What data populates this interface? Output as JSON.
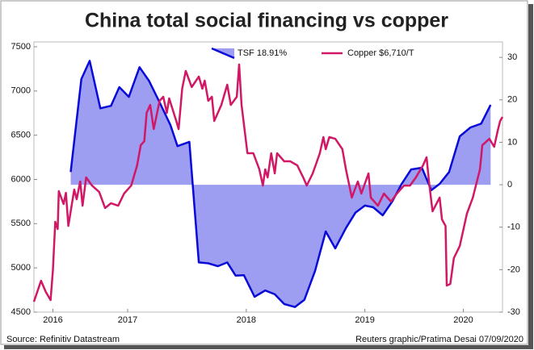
{
  "chart_data": {
    "type": "line",
    "title": "China total social financing vs copper",
    "source": "Source: Refinitiv Datastream",
    "credit": "Reuters graphic/Pratima Desai 07/09/2020",
    "legend": "top",
    "grid": false,
    "xlim": [
      2016.21,
      2020.16
    ],
    "xticks": [
      {
        "value": 2016.37,
        "label": "2016"
      },
      {
        "value": 2017,
        "label": "2017"
      },
      {
        "value": 2018,
        "label": "2018"
      },
      {
        "value": 2019,
        "label": "2019"
      },
      {
        "value": 2019.83,
        "label": "2020"
      }
    ],
    "ylim": [
      4500,
      7500
    ],
    "yticks": [
      4500,
      5000,
      5500,
      6000,
      6500,
      7000,
      7500
    ],
    "y2lim": [
      -30,
      32.5
    ],
    "y2ticks": [
      -30,
      -20,
      -10,
      0,
      10,
      20,
      30
    ],
    "series": [
      {
        "name": "TSF 18.91%",
        "color": "#0a0ad8",
        "fill": "#9d9df2",
        "axis": "y2",
        "area": true,
        "x": [
          2016.52,
          2016.61,
          2016.68,
          2016.77,
          2016.86,
          2016.93,
          2017.01,
          2017.1,
          2017.18,
          2017.27,
          2017.36,
          2017.42,
          2017.52,
          2017.6,
          2017.68,
          2017.76,
          2017.84,
          2017.91,
          2017.98,
          2018.07,
          2018.16,
          2018.24,
          2018.32,
          2018.41,
          2018.49,
          2018.58,
          2018.67,
          2018.75,
          2018.84,
          2018.92,
          2019.0,
          2019.07,
          2019.15,
          2019.23,
          2019.31,
          2019.39,
          2019.48,
          2019.56,
          2019.63,
          2019.71,
          2019.8,
          2019.89,
          2019.98,
          2020.06
        ],
        "values": [
          3.0,
          24.9,
          29.2,
          18.0,
          18.6,
          23.0,
          20.7,
          27.7,
          24.5,
          19.4,
          14.1,
          9.1,
          10.1,
          -18.3,
          -18.5,
          -19.2,
          -18.3,
          -21.4,
          -21.3,
          -26.4,
          -24.9,
          -25.8,
          -28.1,
          -28.8,
          -27.1,
          -20.3,
          -11.0,
          -15.0,
          -10.2,
          -6.6,
          -4.9,
          -5.3,
          -7.2,
          -4.0,
          0.2,
          3.6,
          4.0,
          -1.3,
          0.2,
          3.0,
          11.4,
          13.5,
          14.4,
          18.8
        ]
      },
      {
        "name": "Copper $6,710/T",
        "color": "#d01866",
        "axis": "y",
        "x": [
          2016.21,
          2016.27,
          2016.31,
          2016.35,
          2016.37,
          2016.39,
          2016.41,
          2016.42,
          2016.46,
          2016.48,
          2016.5,
          2016.55,
          2016.57,
          2016.6,
          2016.62,
          2016.65,
          2016.7,
          2016.76,
          2016.81,
          2016.86,
          2016.92,
          2016.97,
          2017.03,
          2017.08,
          2017.11,
          2017.14,
          2017.16,
          2017.19,
          2017.22,
          2017.27,
          2017.3,
          2017.33,
          2017.35,
          2017.41,
          2017.43,
          2017.46,
          2017.49,
          2017.52,
          2017.54,
          2017.6,
          2017.63,
          2017.65,
          2017.68,
          2017.71,
          2017.73,
          2017.79,
          2017.84,
          2017.87,
          2017.92,
          2017.94,
          2017.96,
          2018.01,
          2018.06,
          2018.11,
          2018.14,
          2018.16,
          2018.18,
          2018.21,
          2018.24,
          2018.26,
          2018.32,
          2018.37,
          2018.43,
          2018.48,
          2018.51,
          2018.56,
          2018.62,
          2018.65,
          2018.67,
          2018.7,
          2018.75,
          2018.81,
          2018.84,
          2018.89,
          2018.94,
          2018.97,
          2019.03,
          2019.05,
          2019.11,
          2019.16,
          2019.22,
          2019.27,
          2019.33,
          2019.38,
          2019.43,
          2019.49,
          2019.52,
          2019.54,
          2019.57,
          2019.63,
          2019.65,
          2019.68,
          2019.69,
          2019.72,
          2019.75,
          2019.8,
          2019.86,
          2019.91,
          2019.97,
          2019.99,
          2020.05,
          2020.09,
          2020.12,
          2020.14,
          2020.16
        ],
        "values": [
          4618,
          4855,
          4728,
          4636,
          4974,
          5521,
          5439,
          5868,
          5722,
          5849,
          5475,
          5886,
          5776,
          5977,
          5703,
          6023,
          5931,
          5858,
          5676,
          5731,
          5703,
          5840,
          5931,
          6159,
          6387,
          6432,
          6752,
          6843,
          6570,
          6889,
          6935,
          6752,
          6916,
          6661,
          6570,
          7026,
          7226,
          7117,
          7044,
          7163,
          7026,
          7117,
          6889,
          6935,
          6661,
          6843,
          7071,
          6843,
          6935,
          7299,
          6843,
          6296,
          6296,
          6114,
          5931,
          6114,
          6023,
          6296,
          6068,
          6296,
          6205,
          6205,
          6159,
          6023,
          5931,
          6068,
          6296,
          6479,
          6342,
          6479,
          6460,
          6342,
          6114,
          5795,
          5977,
          5840,
          6068,
          5795,
          5703,
          5840,
          5749,
          5840,
          5931,
          5931,
          6023,
          6159,
          6251,
          5977,
          5640,
          5795,
          5548,
          5475,
          4800,
          4819,
          5111,
          5247,
          5612,
          5795,
          6114,
          6387,
          6460,
          6369,
          6552,
          6661,
          6707
        ]
      }
    ]
  }
}
